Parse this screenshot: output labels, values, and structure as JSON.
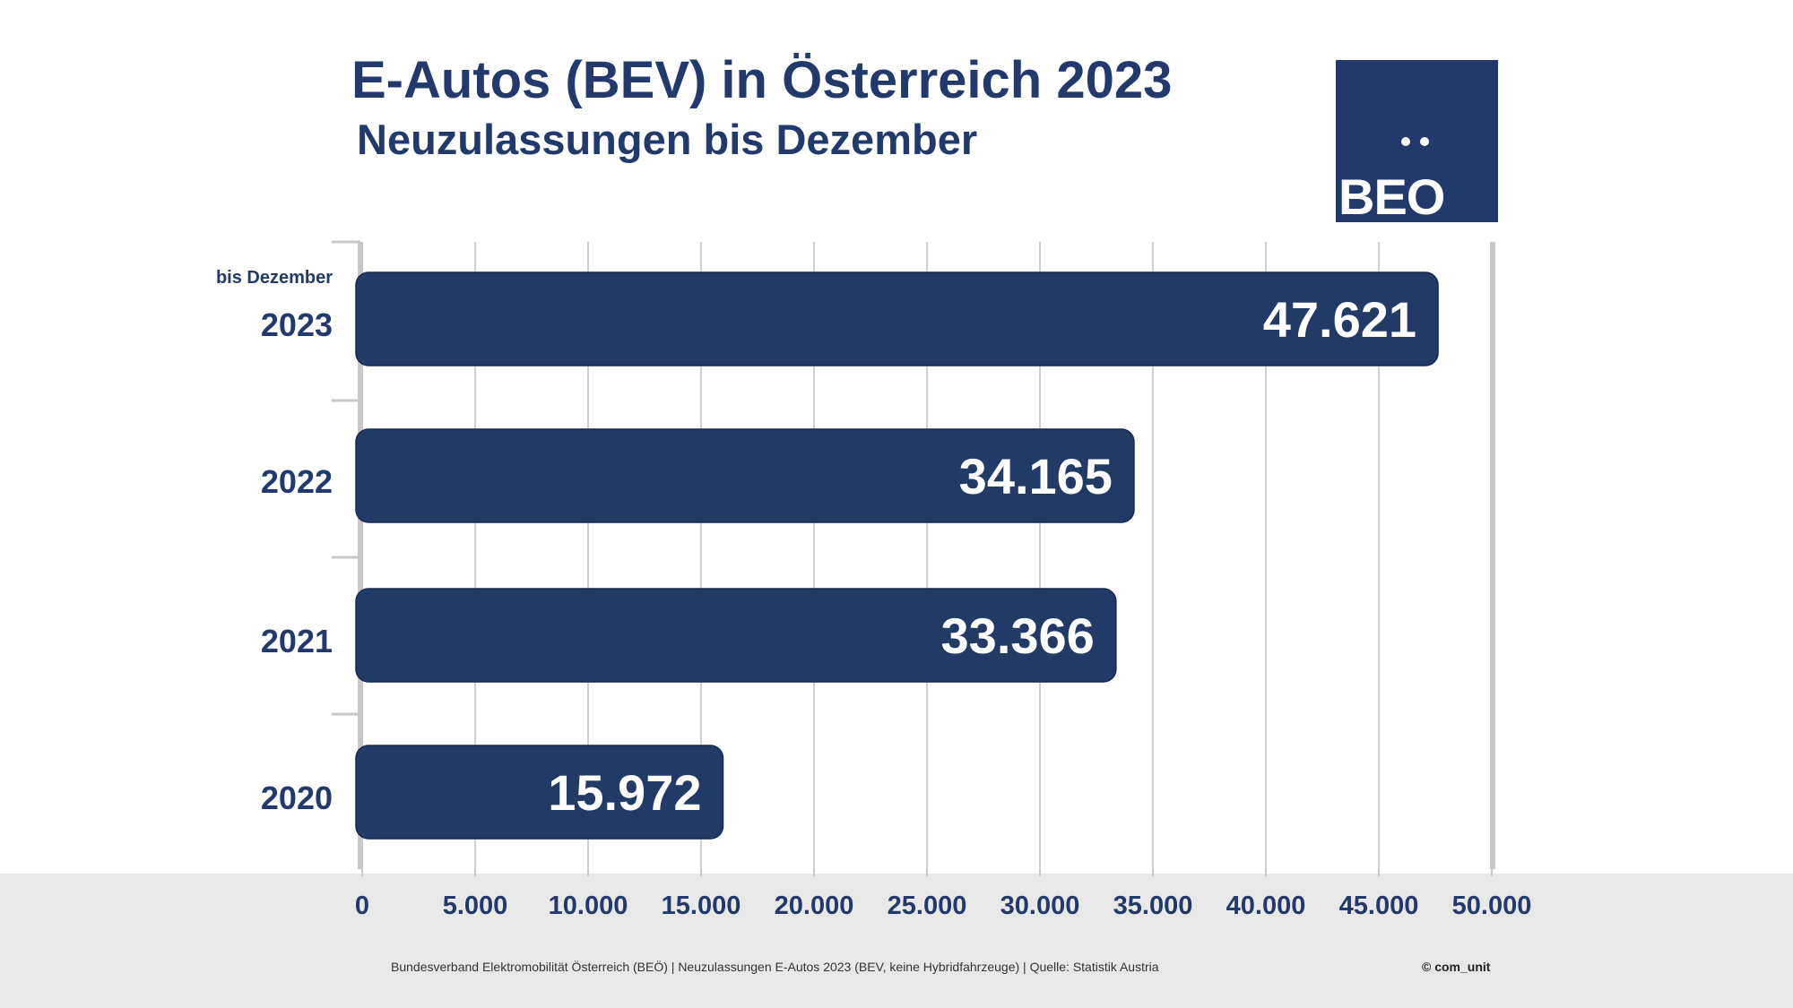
{
  "title": "E-Autos (BEV) in Österreich 2023",
  "subtitle": "Neuzulassungen bis Dezember",
  "logo": {
    "text": "BEO",
    "color": "#223a6b"
  },
  "footnote": "Bundesverband Elektromobilität Österreich (BEÖ) | Neuzulassungen E-Autos 2023 (BEV, keine Hybridfahrzeuge) | Quelle: Statistik Austria",
  "copyright": "© com_unit",
  "colors": {
    "bar": "#213a66",
    "text": "#223a6b",
    "footer_band": "#e8e8e8",
    "grid": "#d0d0d0",
    "axis": "#c8c8c8"
  },
  "chart_data": {
    "type": "bar",
    "orientation": "horizontal",
    "categories": [
      "2023",
      "2022",
      "2021",
      "2020"
    ],
    "category_notes": [
      "bis Dezember",
      "",
      "",
      ""
    ],
    "values": [
      47621,
      34165,
      33366,
      15972
    ],
    "value_labels": [
      "47.621",
      "34.165",
      "33.366",
      "15.972"
    ],
    "xlim": [
      0,
      50000
    ],
    "xticks": [
      0,
      5000,
      10000,
      15000,
      20000,
      25000,
      30000,
      35000,
      40000,
      45000,
      50000
    ],
    "xtick_labels": [
      "0",
      "5.000",
      "10.000",
      "15.000",
      "20.000",
      "25.000",
      "30.000",
      "35.000",
      "40.000",
      "45.000",
      "50.000"
    ],
    "grid": true,
    "legend": "none"
  }
}
